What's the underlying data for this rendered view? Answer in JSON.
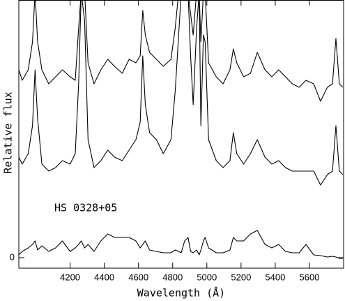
{
  "chart_data": {
    "type": "line",
    "x_label": "Wavelength (Å)",
    "y_label": "Relative flux",
    "annotation": "HS 0328+05",
    "xlim": [
      3900,
      5800
    ],
    "ylim": [
      -0.3,
      7.38
    ],
    "xticks": [
      4200,
      4400,
      4600,
      4800,
      5000,
      5200,
      5400,
      5600
    ],
    "yticks": [
      0
    ],
    "x": [
      3900,
      3920,
      3955,
      3980,
      3995,
      4010,
      4035,
      4075,
      4115,
      4155,
      4200,
      4230,
      4250,
      4265,
      4285,
      4305,
      4340,
      4380,
      4420,
      4460,
      4505,
      4545,
      4585,
      4610,
      4625,
      4640,
      4665,
      4705,
      4745,
      4790,
      4815,
      4835,
      4850,
      4870,
      4890,
      4905,
      4920,
      4940,
      4955,
      4965,
      4980,
      4990,
      5010,
      5055,
      5095,
      5135,
      5155,
      5175,
      5215,
      5255,
      5295,
      5340,
      5380,
      5420,
      5460,
      5500,
      5540,
      5580,
      5625,
      5665,
      5705,
      5735,
      5755,
      5775,
      5795
    ],
    "series": [
      {
        "color": "#000000",
        "values": [
          5.38,
          5.08,
          5.38,
          6.18,
          7.6,
          6.18,
          5.38,
          4.98,
          5.18,
          5.38,
          5.18,
          5.08,
          6.58,
          7.6,
          7.6,
          5.58,
          4.98,
          5.38,
          5.68,
          5.48,
          5.28,
          5.68,
          5.58,
          5.78,
          7.08,
          6.38,
          5.88,
          5.68,
          5.48,
          5.68,
          6.58,
          7.6,
          7.6,
          7.6,
          7.6,
          6.98,
          6.38,
          7.6,
          7.6,
          6.18,
          7.6,
          7.6,
          5.58,
          5.18,
          4.98,
          5.38,
          5.98,
          5.58,
          5.18,
          5.28,
          5.88,
          5.38,
          5.18,
          5.38,
          5.18,
          4.98,
          4.88,
          5.08,
          4.98,
          4.48,
          4.88,
          4.98,
          6.28,
          4.98,
          4.88
        ]
      },
      {
        "color": "#000000",
        "values": [
          2.88,
          2.68,
          2.98,
          3.78,
          5.38,
          3.98,
          2.68,
          2.48,
          2.58,
          2.78,
          2.68,
          2.98,
          4.98,
          7.6,
          6.78,
          3.38,
          2.58,
          2.78,
          3.08,
          2.88,
          2.78,
          3.08,
          3.38,
          3.88,
          5.78,
          4.38,
          3.58,
          3.38,
          2.98,
          3.38,
          4.78,
          6.38,
          7.6,
          7.6,
          7.6,
          5.78,
          4.38,
          6.58,
          7.6,
          3.78,
          6.38,
          6.18,
          3.38,
          2.78,
          2.58,
          2.78,
          3.58,
          2.98,
          2.68,
          2.98,
          3.38,
          2.88,
          2.68,
          2.78,
          2.58,
          2.48,
          2.48,
          2.48,
          2.48,
          2.08,
          2.38,
          2.48,
          3.78,
          2.48,
          2.38
        ]
      },
      {
        "color": "#000000",
        "values": [
          0.08,
          0.18,
          0.28,
          0.38,
          0.48,
          0.22,
          0.34,
          0.18,
          0.28,
          0.48,
          0.18,
          0.28,
          0.38,
          0.48,
          0.28,
          0.38,
          0.18,
          0.48,
          0.68,
          0.58,
          0.58,
          0.58,
          0.48,
          0.28,
          0.38,
          0.48,
          0.22,
          0.18,
          0.14,
          0.14,
          0.22,
          0.18,
          0.14,
          0.48,
          0.58,
          0.18,
          0.14,
          0.22,
          0.08,
          0.22,
          0.48,
          0.58,
          0.28,
          0.14,
          0.14,
          0.22,
          0.58,
          0.48,
          0.48,
          0.68,
          0.78,
          0.38,
          0.28,
          0.38,
          0.18,
          0.14,
          0.14,
          0.38,
          0.08,
          0.06,
          0.02,
          0.04,
          0.02,
          -0.02,
          -0.02
        ]
      }
    ]
  }
}
